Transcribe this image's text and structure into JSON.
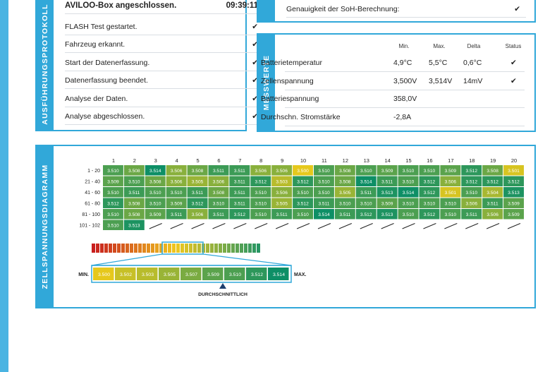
{
  "protocol": {
    "title": "AUSFÜHRUNGSPROTOKOLL",
    "rows": [
      {
        "label": "AVILOO-Box angeschlossen.",
        "time": "09:39:11"
      },
      {
        "label": "FLASH Test gestartet."
      },
      {
        "label": "Fahrzeug erkannt."
      },
      {
        "label": "Start der Datenerfassung."
      },
      {
        "label": "Datenerfassung beendet."
      },
      {
        "label": "Analyse der Daten."
      },
      {
        "label": "Analyse abgeschlossen."
      }
    ]
  },
  "accuracy": {
    "label": "Genauigkeit der SoH-Berechnung:"
  },
  "measurements": {
    "title": "MESSWERTE",
    "headers": {
      "min": "Min.",
      "max": "Max.",
      "delta": "Delta",
      "status": "Status"
    },
    "rows": [
      {
        "label": "Batterietemperatur",
        "min": "4,9°C",
        "max": "5,5°C",
        "delta": "0,6°C",
        "status": "ok"
      },
      {
        "label": "Zellenspannung",
        "min": "3,500V",
        "max": "3,514V",
        "delta": "14mV",
        "status": "ok"
      },
      {
        "label": "Batteriespannung",
        "min": "358,0V",
        "max": "",
        "delta": "",
        "status": ""
      },
      {
        "label": "Durchschn. Stromstärke",
        "min": "-2,8A",
        "max": "",
        "delta": "",
        "status": ""
      }
    ]
  },
  "diagram": {
    "title": "ZELLSPANNUNGSDIAGRAMM",
    "columns": [
      "1",
      "2",
      "3",
      "4",
      "5",
      "6",
      "7",
      "8",
      "9",
      "10",
      "11",
      "12",
      "13",
      "14",
      "15",
      "16",
      "17",
      "18",
      "19",
      "20"
    ],
    "rows": [
      {
        "label": "1 - 20",
        "values": [
          "3.510",
          "3.508",
          "3.514",
          "3.506",
          "3.508",
          "3.511",
          "3.511",
          "3.506",
          "3.506",
          "3.500",
          "3.510",
          "3.508",
          "3.510",
          "3.509",
          "3.510",
          "3.510",
          "3.509",
          "3.512",
          "3.508",
          "3.501"
        ]
      },
      {
        "label": "21 - 40",
        "values": [
          "3.509",
          "3.510",
          "3.508",
          "3.506",
          "3.505",
          "3.506",
          "3.511",
          "3.512",
          "3.503",
          "3.512",
          "3.510",
          "3.508",
          "3.514",
          "3.511",
          "3.510",
          "3.512",
          "3.506",
          "3.512",
          "3.512",
          "3.512"
        ]
      },
      {
        "label": "41 - 60",
        "values": [
          "3.510",
          "3.511",
          "3.510",
          "3.510",
          "3.511",
          "3.508",
          "3.511",
          "3.510",
          "3.506",
          "3.510",
          "3.510",
          "3.505",
          "3.511",
          "3.513",
          "3.514",
          "3.512",
          "3.501",
          "3.510",
          "3.504",
          "3.513"
        ]
      },
      {
        "label": "61 - 80",
        "values": [
          "3.512",
          "3.508",
          "3.510",
          "3.509",
          "3.512",
          "3.510",
          "3.511",
          "3.510",
          "3.505",
          "3.512",
          "3.511",
          "3.510",
          "3.510",
          "3.509",
          "3.510",
          "3.510",
          "3.510",
          "3.506",
          "3.511",
          "3.509"
        ]
      },
      {
        "label": "81 - 100",
        "values": [
          "3.510",
          "3.508",
          "3.509",
          "3.511",
          "3.506",
          "3.511",
          "3.512",
          "3.510",
          "3.511",
          "3.510",
          "3.514",
          "3.511",
          "3.512",
          "3.513",
          "3.510",
          "3.512",
          "3.510",
          "3.511",
          "3.506",
          "3.509"
        ]
      },
      {
        "label": "101 - 102",
        "values": [
          "3.510",
          "3.513"
        ]
      }
    ],
    "legend": {
      "min_label": "MIN.",
      "max_label": "MAX.",
      "avg_label": "DURCHSCHNITTLICH",
      "scale": [
        "3.500",
        "3.502",
        "3.503",
        "3.505",
        "3.507",
        "3.509",
        "3.510",
        "3.512",
        "3.514"
      ]
    }
  },
  "colors": {
    "accent": "#31a8d9",
    "cell_low": "#e6c81c",
    "cell_high": "#0e8f66"
  }
}
